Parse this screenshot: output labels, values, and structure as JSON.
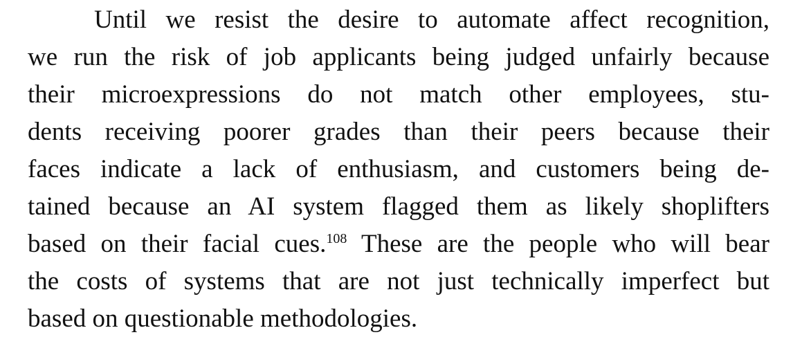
{
  "paragraph": {
    "lines": [
      "Until we resist the desire to automate affect recognition,",
      "we run the risk of job applicants being judged unfairly because",
      "their microexpressions do not match other employees, stu-",
      "dents receiving poorer grades than their peers because their",
      "faces indicate a lack of enthusiasm, and customers being de-",
      "tained because an AI system flagged them as likely shoplifters",
      "based on their facial cues.",
      "the costs of systems that are not just technically imperfect but",
      "based on questionable methodologies."
    ],
    "footnote_ref": "108",
    "line7_continuation": " These are the people who will bear"
  }
}
